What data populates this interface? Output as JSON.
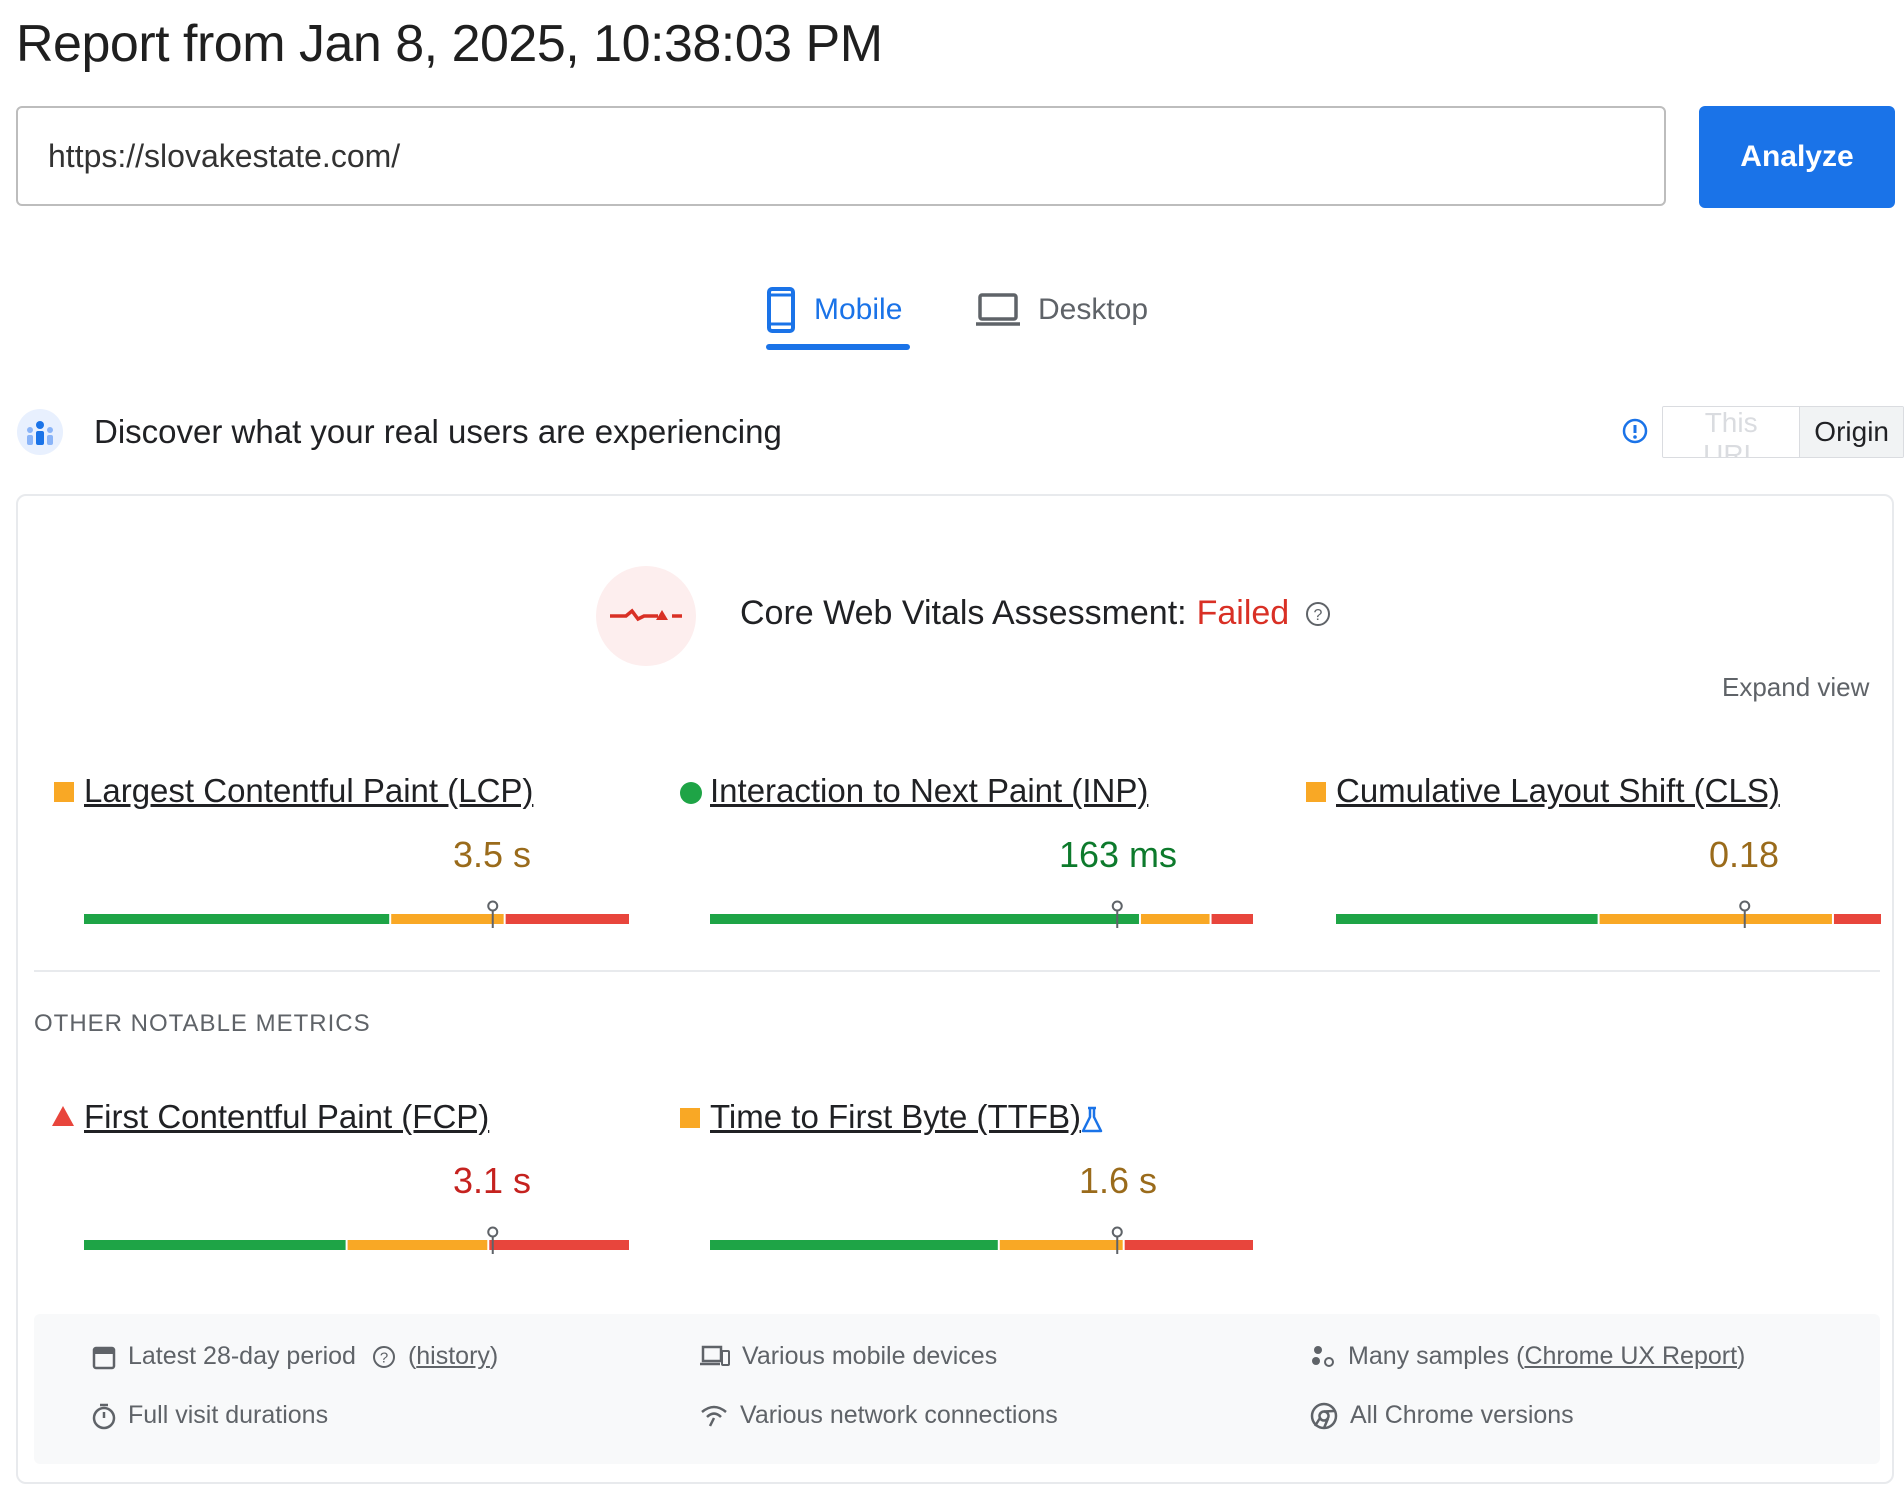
{
  "report": {
    "title": "Report from Jan 8, 2025, 10:38:03 PM"
  },
  "search": {
    "url_value": "https://slovakestate.com/",
    "analyze_label": "Analyze"
  },
  "tabs": {
    "mobile_label": "Mobile",
    "desktop_label": "Desktop",
    "active": "Mobile"
  },
  "field_data": {
    "title": "Discover what your real users are experiencing",
    "toggle_this_url": "This URL",
    "toggle_origin": "Origin",
    "toggle_selected": "Origin"
  },
  "assessment": {
    "label": "Core Web Vitals Assessment:",
    "status": "Failed",
    "expand_label": "Expand view"
  },
  "core_metrics": [
    {
      "name": "Largest Contentful Paint (LCP)",
      "value": "3.5 s",
      "rating": "needs-improvement",
      "dist": [
        56,
        21,
        23
      ],
      "marker": 0.75
    },
    {
      "name": "Interaction to Next Paint (INP)",
      "value": "163 ms",
      "rating": "good",
      "dist": [
        79,
        13,
        8
      ],
      "marker": 0.75
    },
    {
      "name": "Cumulative Layout Shift (CLS)",
      "value": "0.18",
      "rating": "needs-improvement",
      "dist": [
        48,
        43,
        9
      ],
      "marker": 0.75
    }
  ],
  "other_metrics_heading": "OTHER NOTABLE METRICS",
  "other_metrics": [
    {
      "name": "First Contentful Paint (FCP)",
      "value": "3.1 s",
      "rating": "poor",
      "dist": [
        48,
        26,
        26
      ],
      "marker": 0.75,
      "experimental": false
    },
    {
      "name": "Time to First Byte (TTFB)",
      "value": "1.6 s",
      "rating": "needs-improvement",
      "dist": [
        53,
        23,
        24
      ],
      "marker": 0.75,
      "experimental": true
    }
  ],
  "footer": {
    "period_label": "Latest 28-day period",
    "history_link": "history",
    "durations_label": "Full visit durations",
    "devices_label": "Various mobile devices",
    "network_label": "Various network connections",
    "samples_prefix": "Many samples (",
    "samples_link": "Chrome UX Report",
    "samples_suffix": ")",
    "chrome_label": "All Chrome versions"
  },
  "colors": {
    "good": "#1ea446",
    "needs_improvement": "#f9a825",
    "poor": "#e8453c",
    "good_text": "#0d7a2c",
    "needs_improvement_text": "#9a6b1b",
    "poor_text": "#c5221f",
    "accent": "#1a73e8"
  },
  "icons": {
    "mobile": "phone-icon",
    "desktop": "laptop-icon",
    "crux": "crux-users-icon",
    "info": "info-icon",
    "assessment": "vitals-pulse-icon",
    "help": "help-icon",
    "experimental": "flask-icon"
  }
}
